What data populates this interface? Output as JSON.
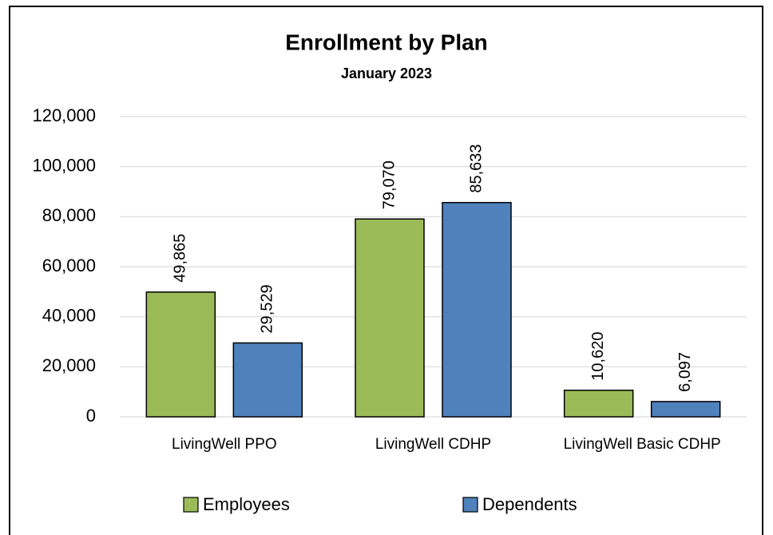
{
  "chart_data": {
    "type": "bar",
    "title": "Enrollment by Plan",
    "subtitle": "January 2023",
    "categories": [
      "LivingWell PPO",
      "LivingWell CDHP",
      "LivingWell Basic CDHP"
    ],
    "series": [
      {
        "name": "Employees",
        "color": "#9bbb59",
        "values": [
          49865,
          79070,
          10620
        ],
        "value_labels": [
          "49,865",
          "79,070",
          "10,620"
        ]
      },
      {
        "name": "Dependents",
        "color": "#4f81bd",
        "values": [
          29529,
          85633,
          6097
        ],
        "value_labels": [
          "29,529",
          "85,633",
          "6,097"
        ]
      }
    ],
    "ylim": [
      0,
      120000
    ],
    "yticks": [
      0,
      {
        "value": 20000,
        "label": "20,000"
      },
      {
        "value": 40000,
        "label": "40,000"
      },
      {
        "value": 60000,
        "label": "60,000"
      },
      {
        "value": 80000,
        "label": "80,000"
      },
      {
        "value": 100000,
        "label": "100,000"
      },
      {
        "value": 120000,
        "label": "120,000"
      }
    ],
    "grid": true,
    "legend": "bottom"
  }
}
